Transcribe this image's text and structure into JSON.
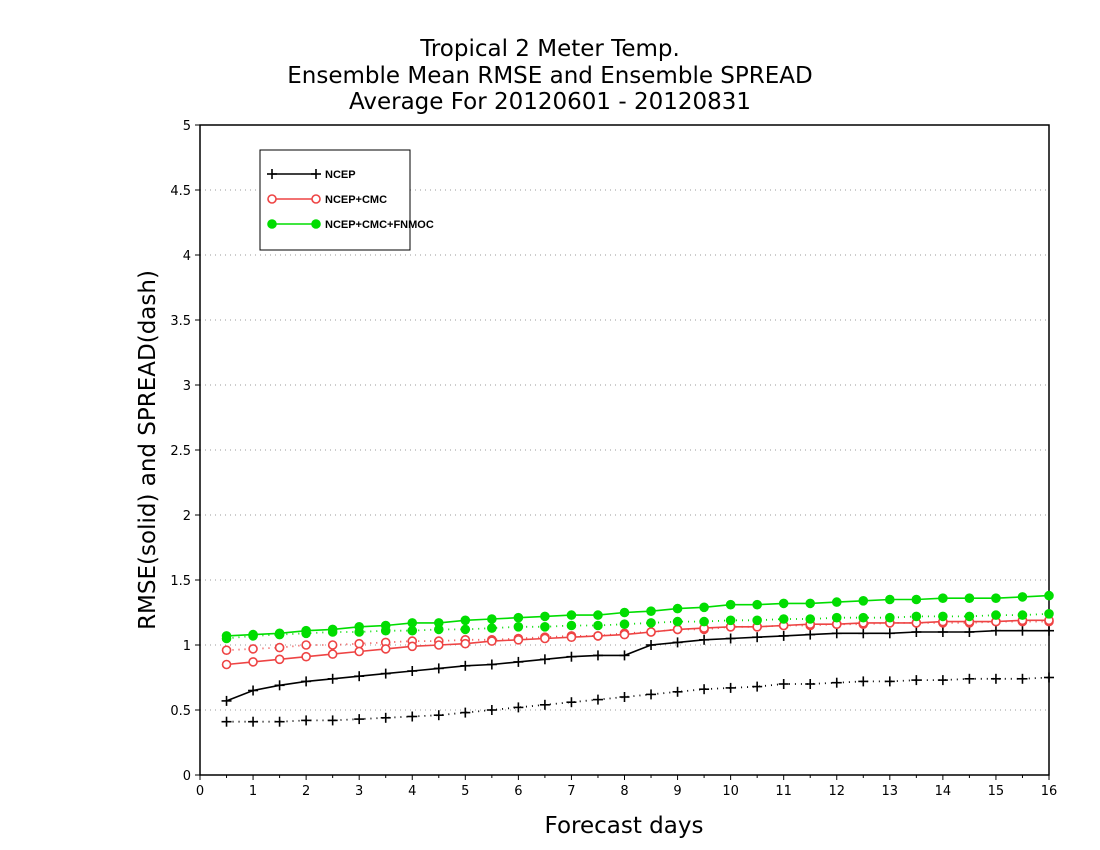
{
  "chart_data": {
    "type": "line",
    "title": [
      "Tropical 2 Meter Temp.",
      "Ensemble Mean RMSE and Ensemble SPREAD",
      "Average For 20120601 - 20120831"
    ],
    "xlabel": "Forecast days",
    "ylabel": "RMSE(solid) and SPREAD(dash)",
    "xlim": [
      0,
      16
    ],
    "ylim": [
      0,
      5
    ],
    "xticks": [
      "0",
      "1",
      "2",
      "3",
      "4",
      "5",
      "6",
      "7",
      "8",
      "9",
      "10",
      "11",
      "12",
      "13",
      "14",
      "15",
      "16"
    ],
    "yticks": [
      "0",
      "0.5",
      "1",
      "1.5",
      "2",
      "2.5",
      "3",
      "3.5",
      "4",
      "4.5",
      "5"
    ],
    "grid": "horizontal dotted",
    "legend_position": "top-left",
    "x": [
      0.5,
      1,
      1.5,
      2,
      2.5,
      3,
      3.5,
      4,
      4.5,
      5,
      5.5,
      6,
      6.5,
      7,
      7.5,
      8,
      8.5,
      9,
      9.5,
      10,
      10.5,
      11,
      11.5,
      12,
      12.5,
      13,
      13.5,
      14,
      14.5,
      15,
      15.5,
      16
    ],
    "series": [
      {
        "name": "NCEP",
        "color": "#000000",
        "marker": "plus",
        "rmse": [
          0.57,
          0.65,
          0.69,
          0.72,
          0.74,
          0.76,
          0.78,
          0.8,
          0.82,
          0.84,
          0.85,
          0.87,
          0.89,
          0.91,
          0.92,
          0.92,
          1.0,
          1.02,
          1.04,
          1.05,
          1.06,
          1.07,
          1.08,
          1.09,
          1.09,
          1.09,
          1.1,
          1.1,
          1.1,
          1.11,
          1.11,
          1.11
        ],
        "spread": [
          0.41,
          0.41,
          0.41,
          0.42,
          0.42,
          0.43,
          0.44,
          0.45,
          0.46,
          0.48,
          0.5,
          0.52,
          0.54,
          0.56,
          0.58,
          0.6,
          0.62,
          0.64,
          0.66,
          0.67,
          0.68,
          0.7,
          0.7,
          0.71,
          0.72,
          0.72,
          0.73,
          0.73,
          0.74,
          0.74,
          0.74,
          0.75
        ]
      },
      {
        "name": "NCEP+CMC",
        "color": "#ee4444",
        "marker": "open-circle",
        "rmse": [
          0.85,
          0.87,
          0.89,
          0.91,
          0.93,
          0.95,
          0.97,
          0.99,
          1.0,
          1.01,
          1.03,
          1.04,
          1.05,
          1.06,
          1.07,
          1.08,
          1.1,
          1.12,
          1.13,
          1.14,
          1.14,
          1.15,
          1.16,
          1.16,
          1.17,
          1.17,
          1.17,
          1.18,
          1.18,
          1.18,
          1.19,
          1.19
        ],
        "spread": [
          0.96,
          0.97,
          0.98,
          1.0,
          1.0,
          1.01,
          1.02,
          1.03,
          1.03,
          1.04,
          1.04,
          1.05,
          1.06,
          1.07,
          1.07,
          1.09,
          1.1,
          1.12,
          1.12,
          1.14,
          1.14,
          1.15,
          1.15,
          1.16,
          1.16,
          1.17,
          1.17,
          1.17,
          1.17,
          1.18,
          1.18,
          1.18
        ]
      },
      {
        "name": "NCEP+CMC+FNMOC",
        "color": "#00dd00",
        "marker": "filled-circle",
        "rmse": [
          1.07,
          1.08,
          1.09,
          1.11,
          1.12,
          1.14,
          1.15,
          1.17,
          1.17,
          1.19,
          1.2,
          1.21,
          1.22,
          1.23,
          1.23,
          1.25,
          1.26,
          1.28,
          1.29,
          1.31,
          1.31,
          1.32,
          1.32,
          1.33,
          1.34,
          1.35,
          1.35,
          1.36,
          1.36,
          1.36,
          1.37,
          1.38
        ],
        "spread": [
          1.05,
          1.07,
          1.08,
          1.09,
          1.1,
          1.1,
          1.11,
          1.11,
          1.12,
          1.12,
          1.13,
          1.14,
          1.14,
          1.15,
          1.15,
          1.16,
          1.17,
          1.18,
          1.18,
          1.19,
          1.19,
          1.2,
          1.2,
          1.21,
          1.21,
          1.21,
          1.22,
          1.22,
          1.22,
          1.23,
          1.23,
          1.24
        ]
      }
    ]
  }
}
